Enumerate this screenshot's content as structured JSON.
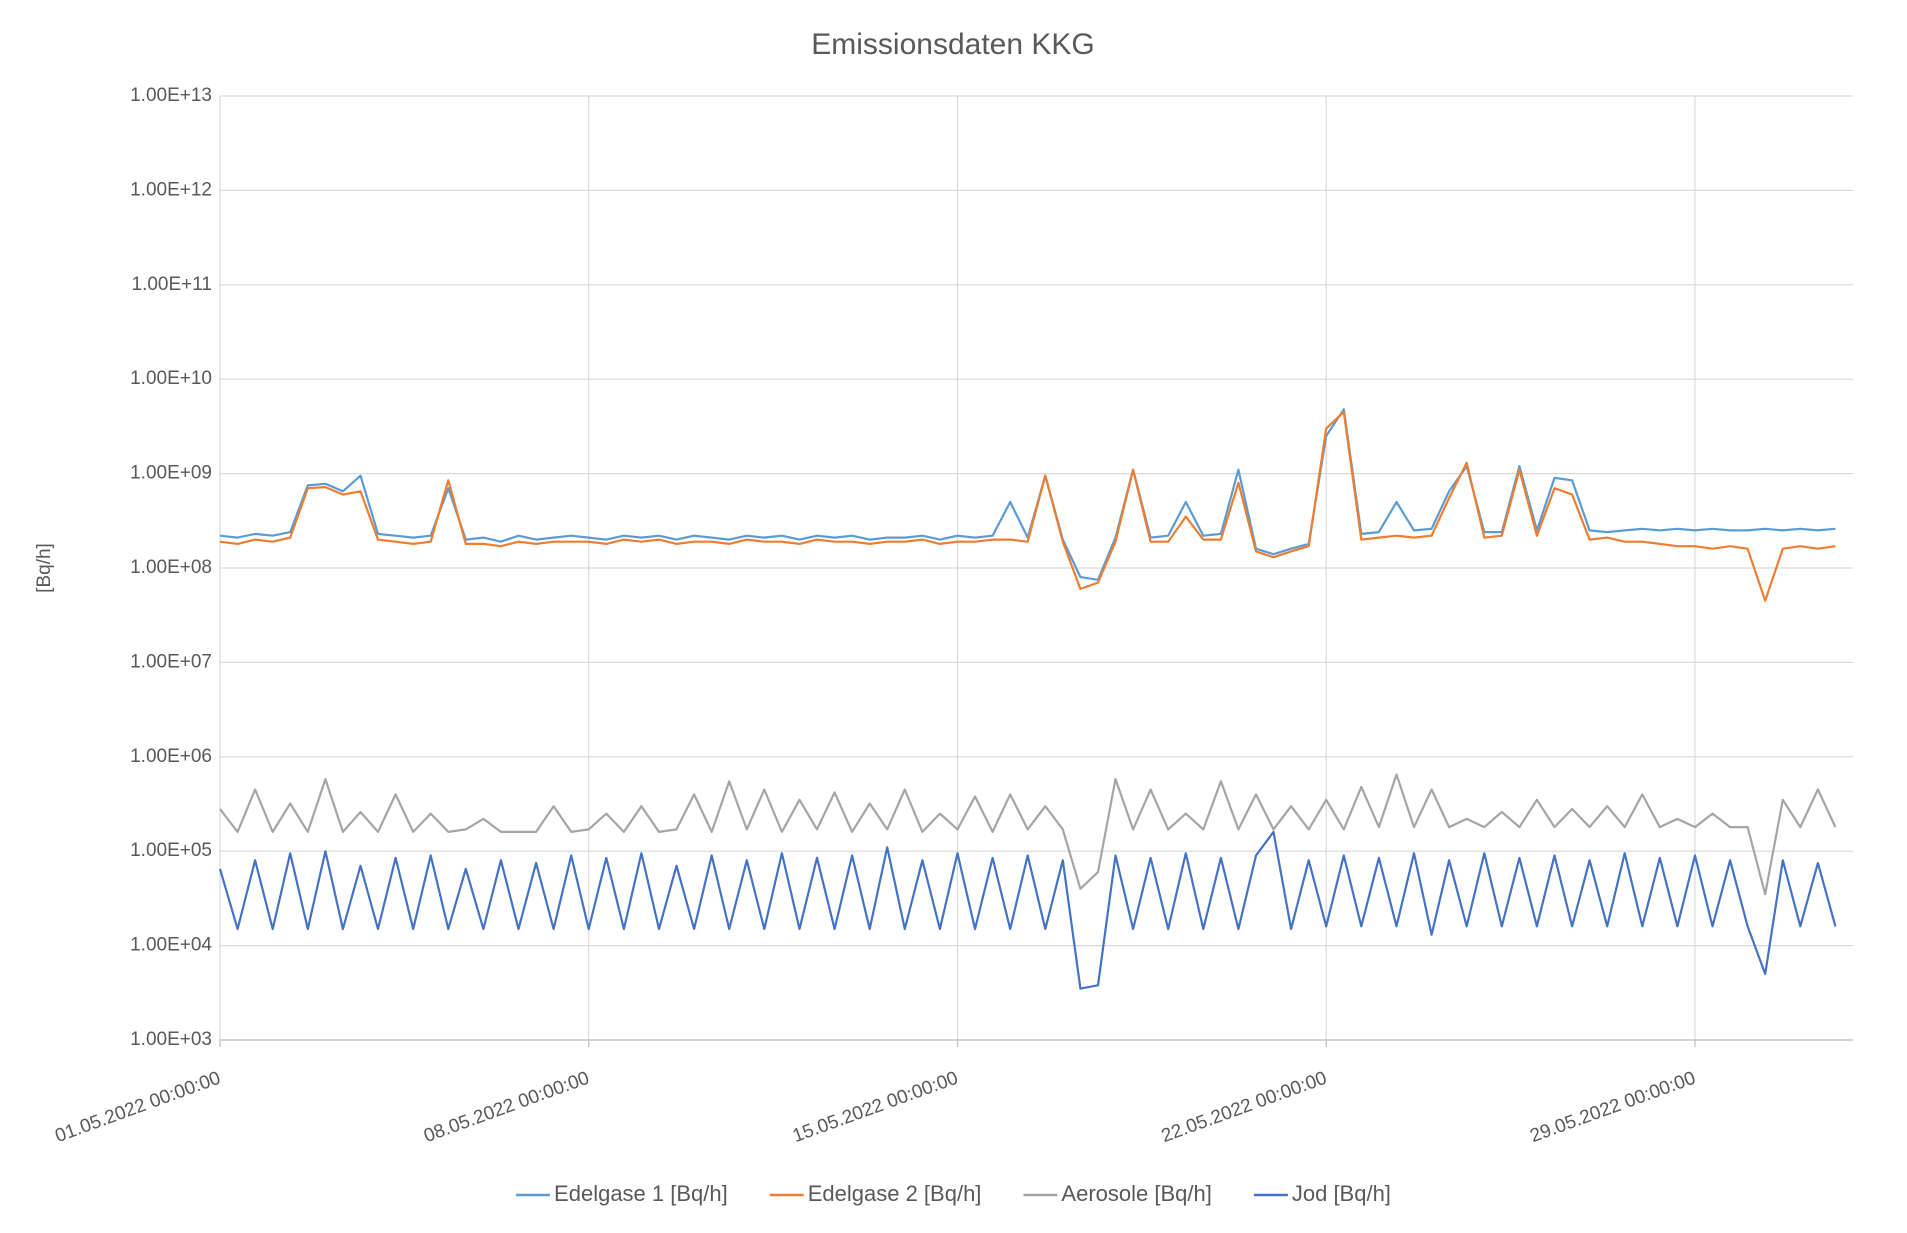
{
  "chart_data": {
    "type": "line",
    "title": "Emissionsdaten KKG",
    "y_label": "[Bq/h]",
    "log_scale": true,
    "grid": true,
    "legend": "bottom",
    "xlim": [
      "01.05.2022 00:00:00",
      "01.06.2022 00:00:00"
    ],
    "xticks": [
      "01.05.2022 00:00:00",
      "08.05.2022 00:00:00",
      "15.05.2022 00:00:00",
      "22.05.2022 00:00:00",
      "29.05.2022 00:00:00"
    ],
    "ylim": [
      1000,
      10000000000000
    ],
    "yticks": [
      {
        "value": 1000,
        "label": "1.00E+03"
      },
      {
        "value": 10000,
        "label": "1.00E+04"
      },
      {
        "value": 100000,
        "label": "1.00E+05"
      },
      {
        "value": 1000000,
        "label": "1.00E+06"
      },
      {
        "value": 10000000,
        "label": "1.00E+07"
      },
      {
        "value": 100000000,
        "label": "1.00E+08"
      },
      {
        "value": 1000000000,
        "label": "1.00E+09"
      },
      {
        "value": 10000000000,
        "label": "1.00E+10"
      },
      {
        "value": 100000000000,
        "label": "1.00E+11"
      },
      {
        "value": 1000000000000,
        "label": "1.00E+12"
      },
      {
        "value": 10000000000000,
        "label": "1.00E+13"
      }
    ],
    "x": [
      "01.05.2022 00:00:00",
      "01.05.2022 08:00:00",
      "01.05.2022 16:00:00",
      "02.05.2022 00:00:00",
      "02.05.2022 08:00:00",
      "02.05.2022 16:00:00",
      "03.05.2022 00:00:00",
      "03.05.2022 08:00:00",
      "03.05.2022 16:00:00",
      "04.05.2022 00:00:00",
      "04.05.2022 08:00:00",
      "04.05.2022 16:00:00",
      "05.05.2022 00:00:00",
      "05.05.2022 08:00:00",
      "05.05.2022 16:00:00",
      "06.05.2022 00:00:00",
      "06.05.2022 08:00:00",
      "06.05.2022 16:00:00",
      "07.05.2022 00:00:00",
      "07.05.2022 08:00:00",
      "07.05.2022 16:00:00",
      "08.05.2022 00:00:00",
      "08.05.2022 08:00:00",
      "08.05.2022 16:00:00",
      "09.05.2022 00:00:00",
      "09.05.2022 08:00:00",
      "09.05.2022 16:00:00",
      "10.05.2022 00:00:00",
      "10.05.2022 08:00:00",
      "10.05.2022 16:00:00",
      "11.05.2022 00:00:00",
      "11.05.2022 08:00:00",
      "11.05.2022 16:00:00",
      "12.05.2022 00:00:00",
      "12.05.2022 08:00:00",
      "12.05.2022 16:00:00",
      "13.05.2022 00:00:00",
      "13.05.2022 08:00:00",
      "13.05.2022 16:00:00",
      "14.05.2022 00:00:00",
      "14.05.2022 08:00:00",
      "14.05.2022 16:00:00",
      "15.05.2022 00:00:00",
      "15.05.2022 08:00:00",
      "15.05.2022 16:00:00",
      "16.05.2022 00:00:00",
      "16.05.2022 08:00:00",
      "16.05.2022 16:00:00",
      "17.05.2022 00:00:00",
      "17.05.2022 08:00:00",
      "17.05.2022 16:00:00",
      "18.05.2022 00:00:00",
      "18.05.2022 08:00:00",
      "18.05.2022 16:00:00",
      "19.05.2022 00:00:00",
      "19.05.2022 08:00:00",
      "19.05.2022 16:00:00",
      "20.05.2022 00:00:00",
      "20.05.2022 08:00:00",
      "20.05.2022 16:00:00",
      "21.05.2022 00:00:00",
      "21.05.2022 08:00:00",
      "21.05.2022 16:00:00",
      "22.05.2022 00:00:00",
      "22.05.2022 08:00:00",
      "22.05.2022 16:00:00",
      "23.05.2022 00:00:00",
      "23.05.2022 08:00:00",
      "23.05.2022 16:00:00",
      "24.05.2022 00:00:00",
      "24.05.2022 08:00:00",
      "24.05.2022 16:00:00",
      "25.05.2022 00:00:00",
      "25.05.2022 08:00:00",
      "25.05.2022 16:00:00",
      "26.05.2022 00:00:00",
      "26.05.2022 08:00:00",
      "26.05.2022 16:00:00",
      "27.05.2022 00:00:00",
      "27.05.2022 08:00:00",
      "27.05.2022 16:00:00",
      "28.05.2022 00:00:00",
      "28.05.2022 08:00:00",
      "28.05.2022 16:00:00",
      "29.05.2022 00:00:00",
      "29.05.2022 08:00:00",
      "29.05.2022 16:00:00",
      "30.05.2022 00:00:00",
      "30.05.2022 08:00:00",
      "30.05.2022 16:00:00",
      "31.05.2022 00:00:00",
      "31.05.2022 08:00:00",
      "31.05.2022 16:00:00"
    ],
    "series": [
      {
        "name": "Edelgase 1 [Bq/h]",
        "color": "#5b9bd5",
        "values": [
          220000000.0,
          210000000.0,
          230000000.0,
          220000000.0,
          240000000.0,
          750000000.0,
          780000000.0,
          650000000.0,
          950000000.0,
          230000000.0,
          220000000.0,
          210000000.0,
          220000000.0,
          700000000.0,
          200000000.0,
          210000000.0,
          190000000.0,
          220000000.0,
          200000000.0,
          210000000.0,
          220000000.0,
          210000000.0,
          200000000.0,
          220000000.0,
          210000000.0,
          220000000.0,
          200000000.0,
          220000000.0,
          210000000.0,
          200000000.0,
          220000000.0,
          210000000.0,
          220000000.0,
          200000000.0,
          220000000.0,
          210000000.0,
          220000000.0,
          200000000.0,
          210000000.0,
          210000000.0,
          220000000.0,
          200000000.0,
          220000000.0,
          210000000.0,
          220000000.0,
          500000000.0,
          210000000.0,
          950000000.0,
          200000000.0,
          80000000.0,
          75000000.0,
          210000000.0,
          1100000000.0,
          210000000.0,
          220000000.0,
          500000000.0,
          220000000.0,
          230000000.0,
          1100000000.0,
          160000000.0,
          140000000.0,
          160000000.0,
          180000000.0,
          2500000000.0,
          4800000000.0,
          230000000.0,
          240000000.0,
          500000000.0,
          250000000.0,
          260000000.0,
          650000000.0,
          1200000000.0,
          240000000.0,
          240000000.0,
          1200000000.0,
          250000000.0,
          900000000.0,
          850000000.0,
          250000000.0,
          240000000.0,
          250000000.0,
          260000000.0,
          250000000.0,
          260000000.0,
          250000000.0,
          260000000.0,
          250000000.0,
          250000000.0,
          260000000.0,
          250000000.0,
          260000000.0,
          250000000.0,
          260000000.0
        ]
      },
      {
        "name": "Edelgase 2 [Bq/h]",
        "color": "#ed7d31",
        "values": [
          190000000.0,
          180000000.0,
          200000000.0,
          190000000.0,
          210000000.0,
          700000000.0,
          720000000.0,
          600000000.0,
          650000000.0,
          200000000.0,
          190000000.0,
          180000000.0,
          190000000.0,
          850000000.0,
          180000000.0,
          180000000.0,
          170000000.0,
          190000000.0,
          180000000.0,
          190000000.0,
          190000000.0,
          190000000.0,
          180000000.0,
          200000000.0,
          190000000.0,
          200000000.0,
          180000000.0,
          190000000.0,
          190000000.0,
          180000000.0,
          200000000.0,
          190000000.0,
          190000000.0,
          180000000.0,
          200000000.0,
          190000000.0,
          190000000.0,
          180000000.0,
          190000000.0,
          190000000.0,
          200000000.0,
          180000000.0,
          190000000.0,
          190000000.0,
          200000000.0,
          200000000.0,
          190000000.0,
          950000000.0,
          190000000.0,
          60000000.0,
          70000000.0,
          190000000.0,
          1100000000.0,
          190000000.0,
          190000000.0,
          350000000.0,
          200000000.0,
          200000000.0,
          800000000.0,
          150000000.0,
          130000000.0,
          150000000.0,
          170000000.0,
          3000000000.0,
          4500000000.0,
          200000000.0,
          210000000.0,
          220000000.0,
          210000000.0,
          220000000.0,
          550000000.0,
          1300000000.0,
          210000000.0,
          220000000.0,
          1100000000.0,
          220000000.0,
          700000000.0,
          600000000.0,
          200000000.0,
          210000000.0,
          190000000.0,
          190000000.0,
          180000000.0,
          170000000.0,
          170000000.0,
          160000000.0,
          170000000.0,
          160000000.0,
          45000000.0,
          160000000.0,
          170000000.0,
          160000000.0,
          170000000.0
        ]
      },
      {
        "name": "Aerosole [Bq/h]",
        "color": "#a5a5a5",
        "values": [
          280000.0,
          160000.0,
          450000.0,
          160000.0,
          320000.0,
          160000.0,
          580000.0,
          160000.0,
          260000.0,
          160000.0,
          400000.0,
          160000.0,
          250000.0,
          160000.0,
          170000.0,
          220000.0,
          160000.0,
          160000.0,
          160000.0,
          300000.0,
          160000.0,
          170000.0,
          250000.0,
          160000.0,
          300000.0,
          160000.0,
          170000.0,
          400000.0,
          160000.0,
          550000.0,
          170000.0,
          450000.0,
          160000.0,
          350000.0,
          170000.0,
          420000.0,
          160000.0,
          320000.0,
          170000.0,
          450000.0,
          160000.0,
          250000.0,
          170000.0,
          380000.0,
          160000.0,
          400000.0,
          170000.0,
          300000.0,
          170000.0,
          40000.0,
          60000.0,
          580000.0,
          170000.0,
          450000.0,
          170000.0,
          250000.0,
          170000.0,
          550000.0,
          170000.0,
          400000.0,
          170000.0,
          300000.0,
          170000.0,
          350000.0,
          170000.0,
          480000.0,
          180000.0,
          650000.0,
          180000.0,
          450000.0,
          180000.0,
          220000.0,
          180000.0,
          260000.0,
          180000.0,
          350000.0,
          180000.0,
          280000.0,
          180000.0,
          300000.0,
          180000.0,
          400000.0,
          180000.0,
          220000.0,
          180000.0,
          250000.0,
          180000.0,
          180000.0,
          35000.0,
          350000.0,
          180000.0,
          450000.0,
          180000.0
        ]
      },
      {
        "name": "Jod [Bq/h]",
        "color": "#4472c4",
        "values": [
          65000.0,
          15000.0,
          80000.0,
          15000.0,
          95000.0,
          15000.0,
          100000.0,
          15000.0,
          70000.0,
          15000.0,
          85000.0,
          15000.0,
          90000.0,
          15000.0,
          65000.0,
          15000.0,
          80000.0,
          15000.0,
          75000.0,
          15000.0,
          90000.0,
          15000.0,
          85000.0,
          15000.0,
          95000.0,
          15000.0,
          70000.0,
          15000.0,
          90000.0,
          15000.0,
          80000.0,
          15000.0,
          95000.0,
          15000.0,
          85000.0,
          15000.0,
          90000.0,
          15000.0,
          110000.0,
          15000.0,
          80000.0,
          15000.0,
          95000.0,
          15000.0,
          85000.0,
          15000.0,
          90000.0,
          15000.0,
          80000.0,
          3500.0,
          3800.0,
          90000.0,
          15000.0,
          85000.0,
          15000.0,
          95000.0,
          15000.0,
          85000.0,
          15000.0,
          90000.0,
          160000.0,
          15000.0,
          80000.0,
          16000.0,
          90000.0,
          16000.0,
          85000.0,
          16000.0,
          95000.0,
          13000.0,
          80000.0,
          16000.0,
          95000.0,
          16000.0,
          85000.0,
          16000.0,
          90000.0,
          16000.0,
          80000.0,
          16000.0,
          95000.0,
          16000.0,
          85000.0,
          16000.0,
          90000.0,
          16000.0,
          80000.0,
          16000.0,
          5000.0,
          80000.0,
          16000.0,
          75000.0,
          16000.0
        ]
      }
    ]
  }
}
